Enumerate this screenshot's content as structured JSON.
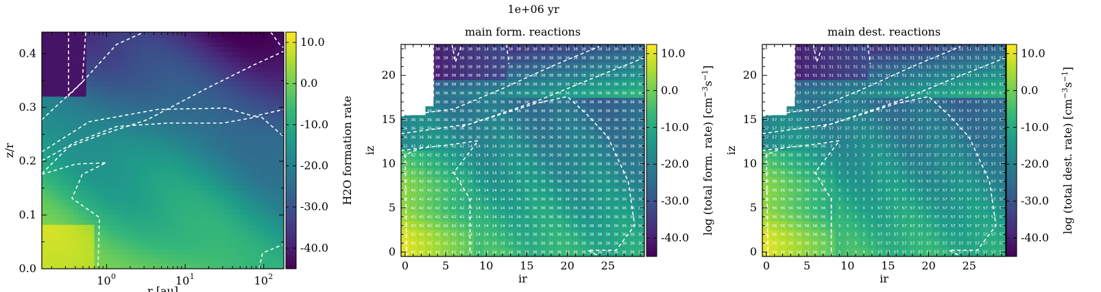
{
  "figure": {
    "suptitle": "1e+06 yr"
  },
  "colormap": {
    "name": "viridis",
    "stops": [
      "#440154",
      "#482878",
      "#3e4989",
      "#31688e",
      "#26828e",
      "#1f9e89",
      "#35b779",
      "#6ece58",
      "#b5de2b",
      "#fde725"
    ]
  },
  "chart_data": [
    {
      "id": "panel-water-rate",
      "type": "heatmap",
      "title": "",
      "xlabel": "r [au]",
      "ylabel": "z/r",
      "xscale": "log",
      "xlim": [
        0.15,
        180
      ],
      "ylim": [
        0,
        0.44
      ],
      "x_ticks": [
        {
          "value": 1,
          "base": "10",
          "exp": "0"
        },
        {
          "value": 10,
          "base": "10",
          "exp": "1"
        },
        {
          "value": 100,
          "base": "10",
          "exp": "2"
        }
      ],
      "y_ticks": [
        {
          "value": 0.0,
          "label": "0.0"
        },
        {
          "value": 0.1,
          "label": "0.1"
        },
        {
          "value": 0.2,
          "label": "0.2"
        },
        {
          "value": 0.3,
          "label": "0.3"
        },
        {
          "value": 0.4,
          "label": "0.4"
        }
      ],
      "colorbar": {
        "label": "H2O formation rate",
        "range": [
          -45,
          12.5
        ],
        "ticks": [
          {
            "value": 10,
            "label": "10.0"
          },
          {
            "value": 0,
            "label": "0.0"
          },
          {
            "value": -10,
            "label": "-10.0"
          },
          {
            "value": -20,
            "label": "-20.0"
          },
          {
            "value": -30,
            "label": "-30.0"
          },
          {
            "value": -40,
            "label": "-40.0"
          }
        ]
      }
    },
    {
      "id": "panel-formation",
      "type": "heatmap",
      "title": "main form. reactions",
      "xlabel": "ir",
      "ylabel": "iz",
      "xlim": [
        -0.5,
        29.5
      ],
      "ylim": [
        -0.5,
        23.5
      ],
      "x_ticks": [
        {
          "value": 0,
          "label": "0"
        },
        {
          "value": 5,
          "label": "5"
        },
        {
          "value": 10,
          "label": "10"
        },
        {
          "value": 15,
          "label": "15"
        },
        {
          "value": 20,
          "label": "20"
        },
        {
          "value": 25,
          "label": "25"
        }
      ],
      "y_ticks": [
        {
          "value": 0,
          "label": "0"
        },
        {
          "value": 5,
          "label": "5"
        },
        {
          "value": 10,
          "label": "10"
        },
        {
          "value": 15,
          "label": "15"
        },
        {
          "value": 20,
          "label": "20"
        }
      ],
      "cell_labels_by_zone": {
        "upper": "38",
        "middle": "14",
        "lower": "42",
        "outer": "36"
      },
      "colorbar": {
        "label": "log (total form. rate) [cm",
        "label_sup": "−3",
        "label_mid": "s",
        "label_sup2": "−1",
        "label_end": "]",
        "range": [
          -45,
          12.5
        ],
        "ticks": [
          {
            "value": 10,
            "label": "10.0"
          },
          {
            "value": 0,
            "label": "0.0"
          },
          {
            "value": -10,
            "label": "-10.0"
          },
          {
            "value": -20,
            "label": "-20.0"
          },
          {
            "value": -30,
            "label": "-30.0"
          },
          {
            "value": -40,
            "label": "-40.0"
          }
        ]
      }
    },
    {
      "id": "panel-destruction",
      "type": "heatmap",
      "title": "main dest. reactions",
      "xlabel": "ir",
      "ylabel": "iz",
      "xlim": [
        -0.5,
        29.5
      ],
      "ylim": [
        -0.5,
        23.5
      ],
      "x_ticks": [
        {
          "value": 0,
          "label": "0"
        },
        {
          "value": 5,
          "label": "5"
        },
        {
          "value": 10,
          "label": "10"
        },
        {
          "value": 15,
          "label": "15"
        },
        {
          "value": 20,
          "label": "20"
        },
        {
          "value": 25,
          "label": "25"
        }
      ],
      "y_ticks": [
        {
          "value": 0,
          "label": "0"
        },
        {
          "value": 5,
          "label": "5"
        },
        {
          "value": 10,
          "label": "10"
        },
        {
          "value": 15,
          "label": "15"
        },
        {
          "value": 20,
          "label": "20"
        }
      ],
      "cell_labels_by_zone": {
        "upper": "51",
        "middle": "3",
        "lower": "56",
        "outer": "57"
      },
      "colorbar": {
        "label": "log (total dest. rate) [cm",
        "label_sup": "−3",
        "label_mid": "s",
        "label_sup2": "−1",
        "label_end": "]",
        "range": [
          -45,
          12.5
        ],
        "ticks": [
          {
            "value": 10,
            "label": "10.0"
          },
          {
            "value": 0,
            "label": "0.0"
          },
          {
            "value": -10,
            "label": "-10.0"
          },
          {
            "value": -20,
            "label": "-20.0"
          },
          {
            "value": -30,
            "label": "-30.0"
          },
          {
            "value": -40,
            "label": "-40.0"
          }
        ]
      }
    }
  ]
}
